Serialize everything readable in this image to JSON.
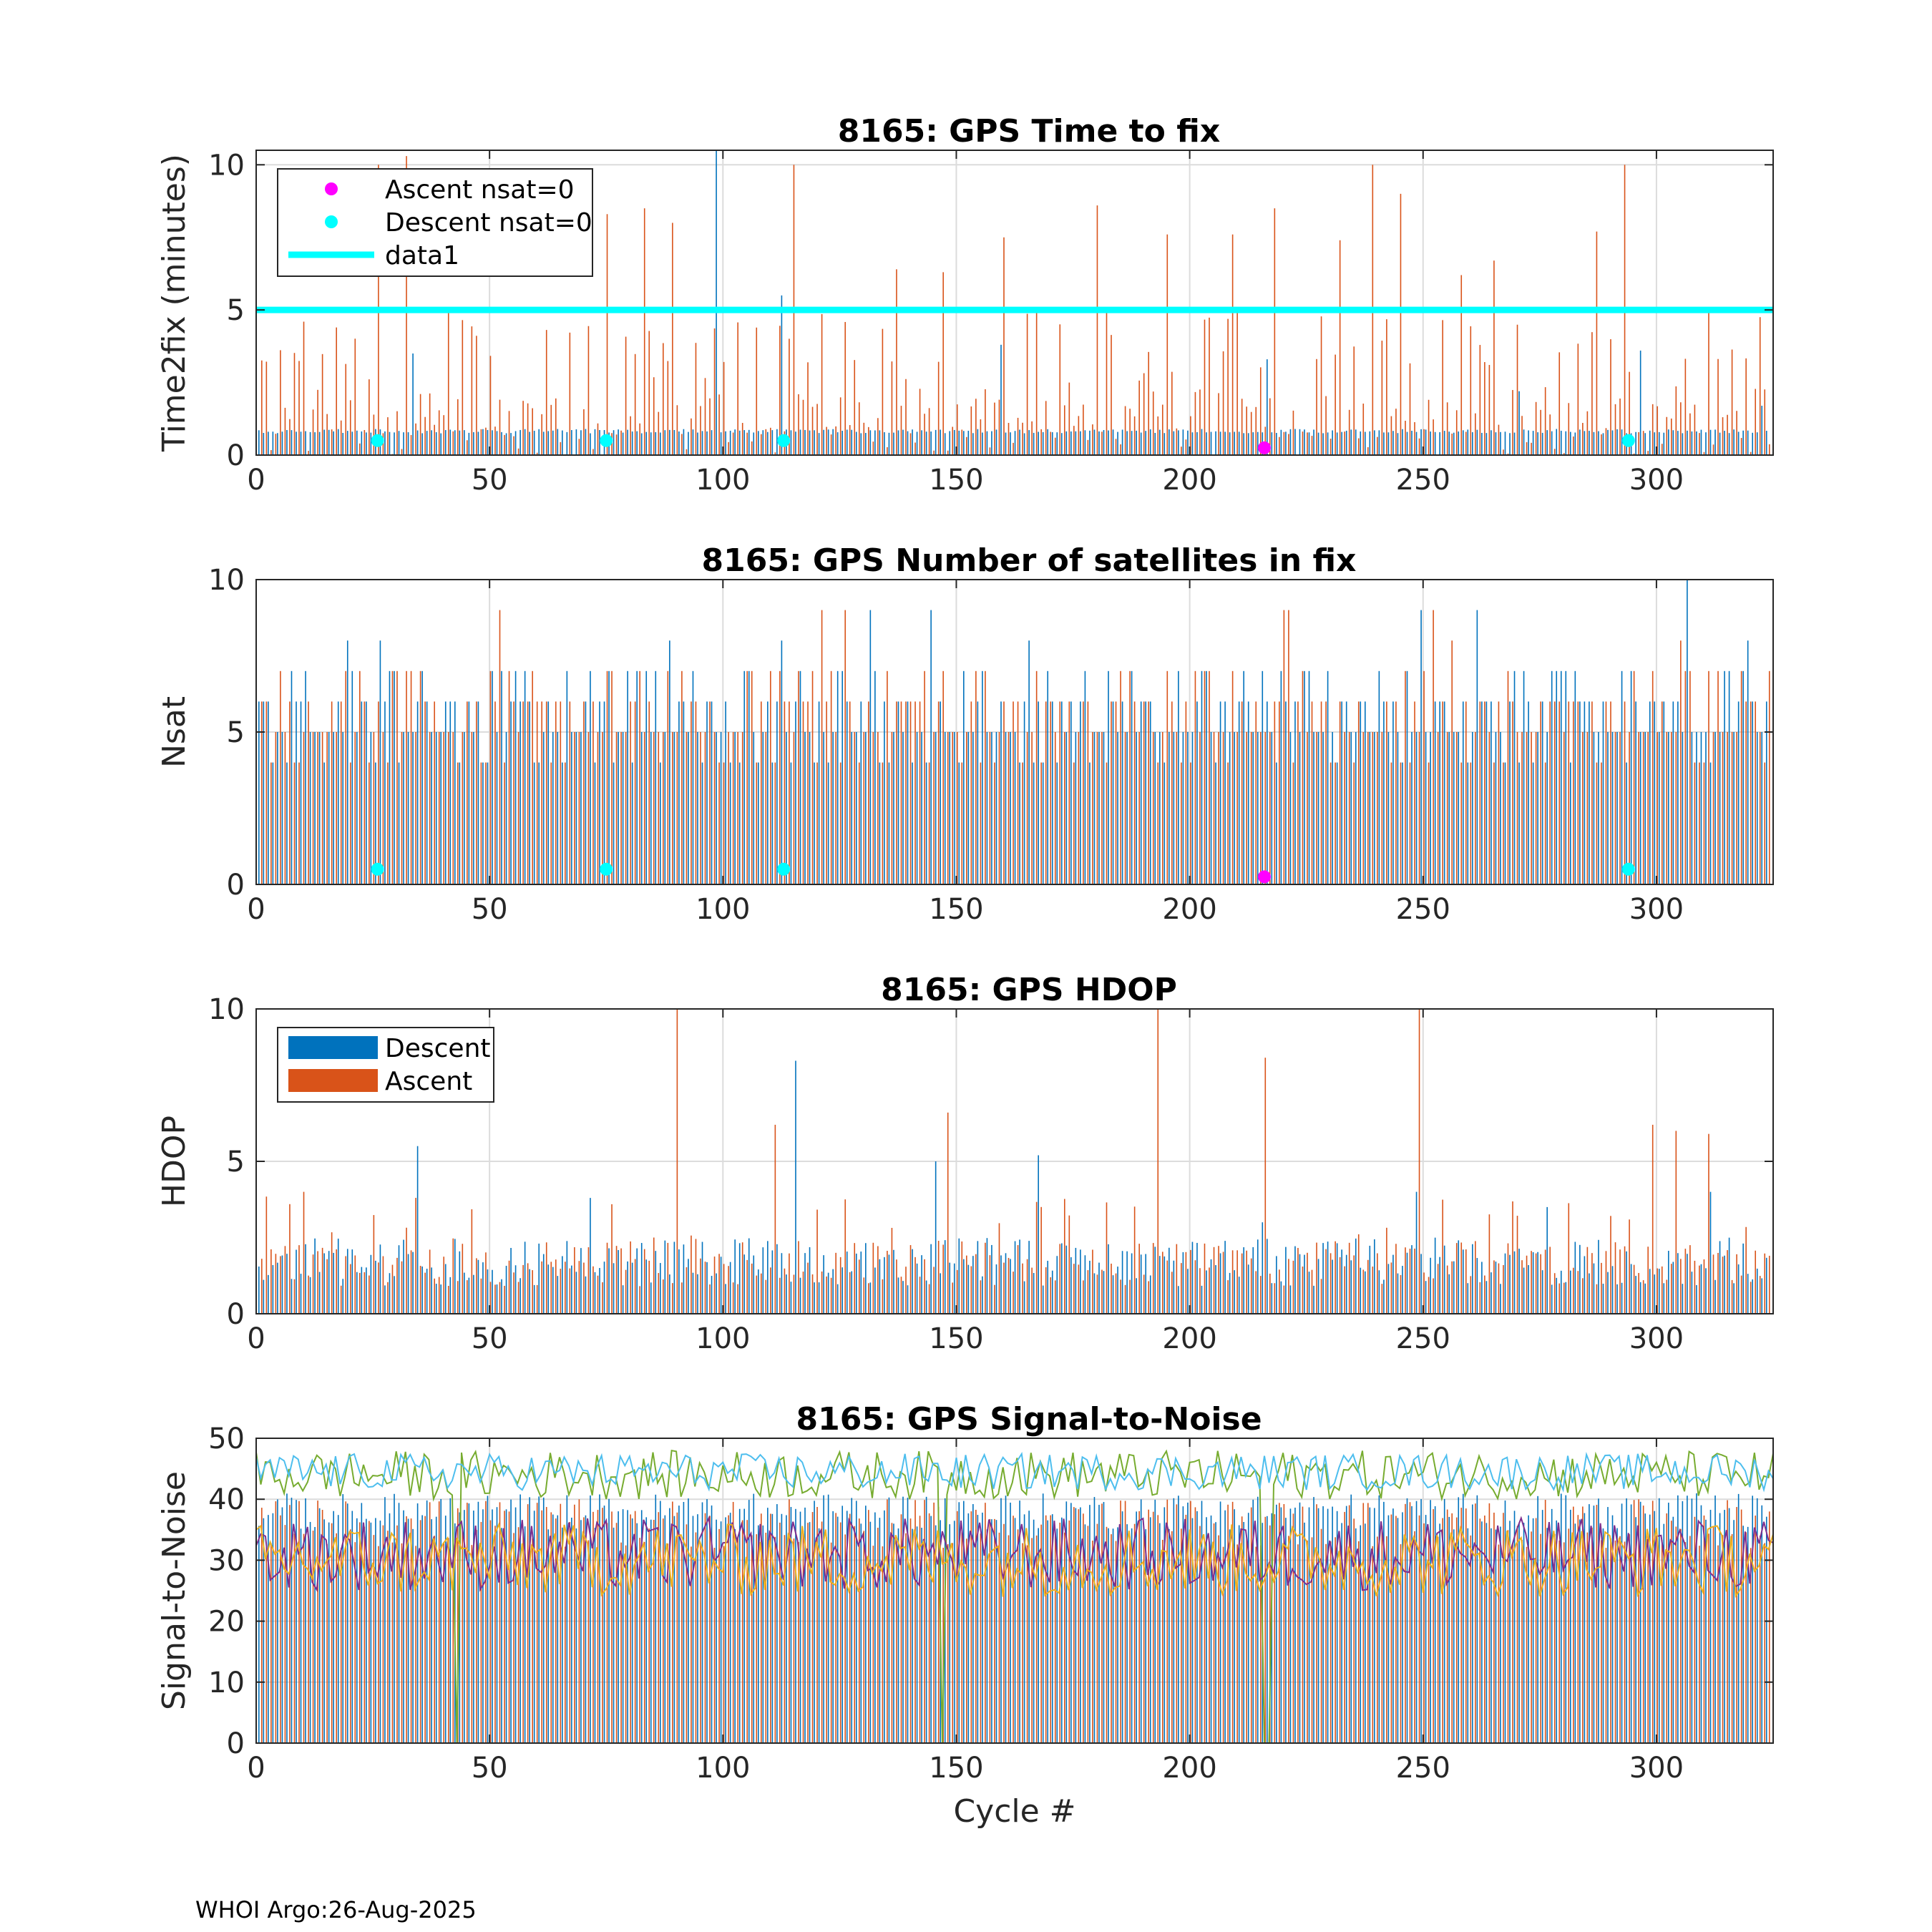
{
  "footer": "WHOI Argo:26-Aug-2025",
  "colors": {
    "descent": "#0072BD",
    "ascent": "#D95319",
    "magenta": "#FF00FF",
    "cyan": "#00FFFF",
    "grid": "#DCDCDC",
    "snr_lines": [
      "#77AC30",
      "#4DBEEE",
      "#7E2F8E",
      "#EDB120"
    ]
  },
  "chart_data": [
    {
      "type": "bar",
      "title": "8165: GPS Time to fix",
      "xlabel": "",
      "ylabel": "Time2fix (minutes)",
      "xlim": [
        0,
        325
      ],
      "ylim": [
        0,
        10.5
      ],
      "xticks": [
        0,
        50,
        100,
        150,
        200,
        250,
        300
      ],
      "yticks": [
        0,
        5,
        10
      ],
      "grid": true,
      "legend_position": "top-left",
      "legend": [
        {
          "label": "Ascent nsat=0",
          "kind": "marker",
          "color": "#FF00FF"
        },
        {
          "label": "Descent nsat=0",
          "kind": "marker",
          "color": "#00FFFF"
        },
        {
          "label": "data1",
          "kind": "line",
          "color": "#00FFFF"
        }
      ],
      "reference_line": {
        "name": "data1",
        "y": 5
      },
      "markers": [
        {
          "series": "Descent nsat=0",
          "x": [
            26,
            75,
            113,
            294
          ],
          "y": [
            0.5,
            0.5,
            0.5,
            0.5
          ]
        },
        {
          "series": "Ascent nsat=0",
          "x": [
            216
          ],
          "y": [
            0.25
          ]
        }
      ],
      "series": [
        {
          "name": "Descent",
          "typical": 0.8,
          "spikes": [
            [
              99,
              10.5
            ],
            [
              113,
              5.5
            ],
            [
              34,
              3.5
            ],
            [
              160,
              3.8
            ],
            [
              217,
              3.3
            ],
            [
              271,
              2.2
            ],
            [
              297,
              3.6
            ],
            [
              323,
              1.7
            ]
          ]
        },
        {
          "name": "Ascent",
          "typical": 2.5,
          "spikes": [
            [
              26,
              10
            ],
            [
              32,
              10.3
            ],
            [
              75,
              8.3
            ],
            [
              83,
              8.5
            ],
            [
              89,
              8.0
            ],
            [
              115,
              10
            ],
            [
              137,
              6.4
            ],
            [
              147,
              6.3
            ],
            [
              160,
              7.5
            ],
            [
              180,
              8.6
            ],
            [
              195,
              7.6
            ],
            [
              209,
              7.6
            ],
            [
              218,
              8.5
            ],
            [
              232,
              7.4
            ],
            [
              239,
              10
            ],
            [
              245,
              9.0
            ],
            [
              258,
              6.2
            ],
            [
              265,
              6.7
            ],
            [
              287,
              7.7
            ],
            [
              293,
              10
            ]
          ]
        }
      ]
    },
    {
      "type": "bar",
      "title": "8165: GPS Number of satellites in fix",
      "xlabel": "",
      "ylabel": "Nsat",
      "xlim": [
        0,
        325
      ],
      "ylim": [
        0,
        10
      ],
      "xticks": [
        0,
        50,
        100,
        150,
        200,
        250,
        300
      ],
      "yticks": [
        0,
        5,
        10
      ],
      "grid": true,
      "markers": [
        {
          "series": "Descent nsat=0",
          "x": [
            26,
            75,
            113,
            294
          ],
          "y": [
            0.5,
            0.5,
            0.5,
            0.5
          ]
        },
        {
          "series": "Ascent nsat=0",
          "x": [
            216
          ],
          "y": [
            0.25
          ]
        }
      ],
      "series": [
        {
          "name": "Descent",
          "typical": 5,
          "spikes": [
            [
              20,
              8
            ],
            [
              27,
              8
            ],
            [
              89,
              8
            ],
            [
              113,
              8
            ],
            [
              132,
              9
            ],
            [
              145,
              9
            ],
            [
              166,
              8
            ],
            [
              250,
              9
            ],
            [
              262,
              9
            ],
            [
              307,
              10
            ],
            [
              320,
              8
            ]
          ]
        },
        {
          "name": "Ascent",
          "typical": 5,
          "spikes": [
            [
              52,
              9
            ],
            [
              121,
              9
            ],
            [
              126,
              9
            ],
            [
              220,
              9
            ],
            [
              221,
              9
            ],
            [
              252,
              9
            ],
            [
              256,
              8
            ],
            [
              305,
              8
            ]
          ]
        }
      ]
    },
    {
      "type": "bar",
      "title": "8165: GPS HDOP",
      "xlabel": "",
      "ylabel": "HDOP",
      "xlim": [
        0,
        325
      ],
      "ylim": [
        0,
        10
      ],
      "xticks": [
        0,
        50,
        100,
        150,
        200,
        250,
        300
      ],
      "yticks": [
        0,
        5,
        10
      ],
      "grid": true,
      "legend_position": "top-left",
      "legend": [
        {
          "label": "Descent",
          "kind": "bar",
          "color": "#0072BD"
        },
        {
          "label": "Ascent",
          "kind": "bar",
          "color": "#D95319"
        }
      ],
      "series": [
        {
          "name": "Descent",
          "typical": 1.2,
          "spikes": [
            [
              35,
              5.5
            ],
            [
              72,
              3.8
            ],
            [
              116,
              8.3
            ],
            [
              146,
              5.0
            ],
            [
              168,
              5.2
            ],
            [
              216,
              3.0
            ],
            [
              249,
              4.0
            ],
            [
              277,
              3.5
            ],
            [
              312,
              4.0
            ]
          ]
        },
        {
          "name": "Ascent",
          "typical": 1.8,
          "spikes": [
            [
              10,
              4.0
            ],
            [
              90,
              10
            ],
            [
              111,
              6.2
            ],
            [
              148,
              6.6
            ],
            [
              193,
              10
            ],
            [
              216,
              8.4
            ],
            [
              249,
              10
            ],
            [
              299,
              6.2
            ],
            [
              304,
              6.0
            ],
            [
              311,
              5.9
            ]
          ]
        }
      ]
    },
    {
      "type": "line",
      "title": "8165: GPS Signal-to-Noise",
      "xlabel": "Cycle #",
      "ylabel": "Signal-to-Noise",
      "xlim": [
        0,
        325
      ],
      "ylim": [
        0,
        50
      ],
      "xticks": [
        0,
        50,
        100,
        150,
        200,
        250,
        300
      ],
      "yticks": [
        0,
        10,
        20,
        30,
        40,
        50
      ],
      "grid": true,
      "bars_background": {
        "descent_typical": 38,
        "ascent_typical": 36
      },
      "series": [
        {
          "name": "SNR max (green)",
          "center": 44,
          "spread": 4,
          "color": "#77AC30"
        },
        {
          "name": "SNR 2nd (light blue)",
          "center": 44.5,
          "spread": 3,
          "color": "#4DBEEE"
        },
        {
          "name": "SNR low (purple)",
          "center": 31,
          "spread": 6,
          "color": "#7E2F8E"
        },
        {
          "name": "SNR low (yellow)",
          "center": 30,
          "spread": 6,
          "color": "#EDB120"
        }
      ],
      "dropouts": [
        [
          43,
          0
        ],
        [
          147,
          0
        ],
        [
          216,
          0
        ],
        [
          217,
          0
        ]
      ]
    }
  ]
}
